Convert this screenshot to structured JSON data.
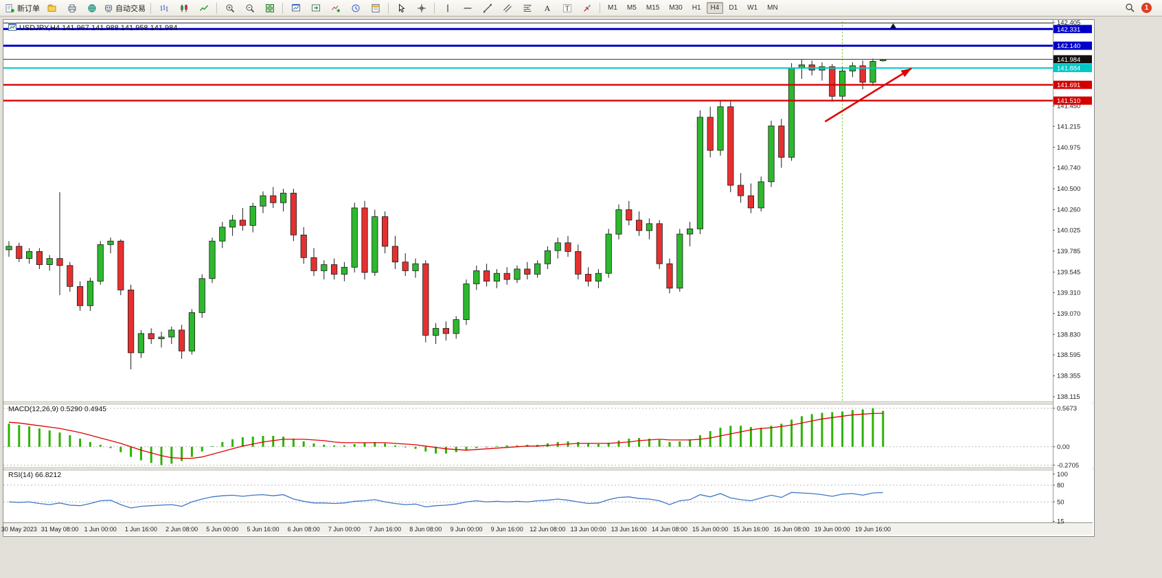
{
  "toolbar": {
    "new_order": "新订单",
    "auto_trading": "自动交易",
    "buttons": [
      {
        "name": "new-order-button",
        "icon": "new-order",
        "label": "新订单"
      },
      {
        "name": "profiles-button",
        "icon": "folder"
      },
      {
        "name": "print-button",
        "icon": "printer"
      },
      {
        "name": "navigator-button",
        "icon": "globe"
      },
      {
        "name": "auto-trading-button",
        "icon": "robot",
        "label": "自动交易"
      },
      {
        "sep": true
      },
      {
        "name": "bar-chart-button",
        "icon": "bars"
      },
      {
        "name": "candlestick-chart-button",
        "icon": "candles"
      },
      {
        "name": "line-chart-button",
        "icon": "line"
      },
      {
        "sep": true
      },
      {
        "name": "zoom-in-button",
        "icon": "zoom-in"
      },
      {
        "name": "zoom-out-button",
        "icon": "zoom-out"
      },
      {
        "name": "tile-windows-button",
        "icon": "tile"
      },
      {
        "sep": true
      },
      {
        "name": "new-chart-button",
        "icon": "new-chart"
      },
      {
        "name": "chart-shift-button",
        "icon": "shift"
      },
      {
        "name": "indicators-button",
        "icon": "indicator-plus"
      },
      {
        "name": "period-button",
        "icon": "clock"
      },
      {
        "name": "templates-button",
        "icon": "template"
      },
      {
        "sep": true
      },
      {
        "name": "cursor-button",
        "icon": "cursor"
      },
      {
        "name": "crosshair-button",
        "icon": "crosshair"
      },
      {
        "sep": true
      },
      {
        "name": "vertical-line-button",
        "icon": "vline"
      },
      {
        "name": "horizontal-line-button",
        "icon": "hline"
      },
      {
        "name": "trendline-button",
        "icon": "trendline"
      },
      {
        "name": "channel-button",
        "icon": "channel"
      },
      {
        "name": "fibonacci-button",
        "icon": "fibo"
      },
      {
        "name": "text-button",
        "icon": "textA"
      },
      {
        "name": "label-button",
        "icon": "labelT"
      },
      {
        "name": "arrows-button",
        "icon": "arrows"
      },
      {
        "sep": true
      }
    ],
    "timeframes": [
      "M1",
      "M5",
      "M15",
      "M30",
      "H1",
      "H4",
      "D1",
      "W1",
      "MN"
    ],
    "active_timeframe": "H4",
    "right_icons": [
      {
        "name": "search-icon",
        "icon": "search"
      }
    ],
    "notification_count": "1"
  },
  "chart": {
    "header": "USDJPY,H4 141.967 141.988 141.958 141.984",
    "macd_label": "MACD(12,26,9) 0.5290 0.4945",
    "rsi_label": "RSI(14) 66.8212"
  },
  "chart_data": {
    "type": "candlestick",
    "symbol": "USDJPY",
    "timeframe": "H4",
    "current_price": 141.984,
    "current_price_label": "141.984",
    "price_range": {
      "min": 138.06,
      "max": 142.42
    },
    "price_axis_ticks": [
      "142.405",
      "141.450",
      "141.215",
      "140.975",
      "140.740",
      "140.500",
      "140.260",
      "140.025",
      "139.785",
      "139.545",
      "139.310",
      "139.070",
      "138.830",
      "138.595",
      "138.355",
      "138.115"
    ],
    "time_labels": [
      "30 May 2023",
      "31 May 08:00",
      "1 Jun 00:00",
      "1 Jun 16:00",
      "2 Jun 08:00",
      "5 Jun 00:00",
      "5 Jun 16:00",
      "6 Jun 08:00",
      "7 Jun 00:00",
      "7 Jun 16:00",
      "8 Jun 08:00",
      "9 Jun 00:00",
      "9 Jun 16:00",
      "12 Jun 08:00",
      "13 Jun 00:00",
      "13 Jun 16:00",
      "14 Jun 08:00",
      "15 Jun 00:00",
      "15 Jun 16:00",
      "16 Jun 08:00",
      "19 Jun 00:00",
      "19 Jun 16:00"
    ],
    "levels": [
      {
        "price": 142.331,
        "label_text": "142.331",
        "color": "#0000c8",
        "width": 3
      },
      {
        "price": 142.14,
        "label_text": "142.140",
        "color": "#0000c8",
        "width": 3
      },
      {
        "price": 141.884,
        "label_text": "141.884",
        "color": "#00c8c8",
        "width": 2
      },
      {
        "price": 141.691,
        "label_text": "141.691",
        "color": "#d40000",
        "width": 2.4
      },
      {
        "price": 141.51,
        "label_text": "141.510",
        "color": "#d40000",
        "width": 2.4
      }
    ],
    "colors": {
      "bull": "#2eb82e",
      "bear": "#e63030",
      "wick": "#1a1a1a",
      "macd_hist": "#2db200",
      "macd_signal": "#e00000",
      "rsi_line": "#3e76c6"
    },
    "candles": [
      [
        139.8,
        139.9,
        139.72,
        139.84
      ],
      [
        139.84,
        139.88,
        139.66,
        139.7
      ],
      [
        139.7,
        139.82,
        139.64,
        139.78
      ],
      [
        139.78,
        139.82,
        139.58,
        139.63
      ],
      [
        139.63,
        139.74,
        139.56,
        139.7
      ],
      [
        139.7,
        140.46,
        139.28,
        139.62
      ],
      [
        139.62,
        139.66,
        139.32,
        139.38
      ],
      [
        139.38,
        139.44,
        139.1,
        139.16
      ],
      [
        139.16,
        139.48,
        139.1,
        139.44
      ],
      [
        139.44,
        139.9,
        139.4,
        139.86
      ],
      [
        139.86,
        139.94,
        139.76,
        139.9
      ],
      [
        139.9,
        139.92,
        139.28,
        139.34
      ],
      [
        139.34,
        139.4,
        138.43,
        138.62
      ],
      [
        138.62,
        138.88,
        138.56,
        138.84
      ],
      [
        138.84,
        138.9,
        138.72,
        138.78
      ],
      [
        138.78,
        138.86,
        138.68,
        138.8
      ],
      [
        138.8,
        138.92,
        138.72,
        138.88
      ],
      [
        138.88,
        138.94,
        138.55,
        138.64
      ],
      [
        138.64,
        139.12,
        138.6,
        139.08
      ],
      [
        139.08,
        139.52,
        139.02,
        139.47
      ],
      [
        139.47,
        139.94,
        139.42,
        139.9
      ],
      [
        139.9,
        140.12,
        139.82,
        140.06
      ],
      [
        140.06,
        140.2,
        139.96,
        140.14
      ],
      [
        140.14,
        140.28,
        140.02,
        140.08
      ],
      [
        140.08,
        140.34,
        140.0,
        140.3
      ],
      [
        140.3,
        140.47,
        140.22,
        140.42
      ],
      [
        140.42,
        140.52,
        140.28,
        140.34
      ],
      [
        140.34,
        140.5,
        140.24,
        140.45
      ],
      [
        140.45,
        140.5,
        139.9,
        139.97
      ],
      [
        139.97,
        140.06,
        139.64,
        139.71
      ],
      [
        139.71,
        139.82,
        139.5,
        139.56
      ],
      [
        139.56,
        139.68,
        139.46,
        139.63
      ],
      [
        139.63,
        139.7,
        139.46,
        139.52
      ],
      [
        139.52,
        139.66,
        139.44,
        139.6
      ],
      [
        139.6,
        140.34,
        139.54,
        140.28
      ],
      [
        140.28,
        140.36,
        139.46,
        139.54
      ],
      [
        139.54,
        140.26,
        139.5,
        140.18
      ],
      [
        140.18,
        140.24,
        139.76,
        139.84
      ],
      [
        139.84,
        139.96,
        139.58,
        139.66
      ],
      [
        139.66,
        139.76,
        139.5,
        139.56
      ],
      [
        139.56,
        139.7,
        139.48,
        139.64
      ],
      [
        139.64,
        139.68,
        138.74,
        138.82
      ],
      [
        138.82,
        138.96,
        138.72,
        138.9
      ],
      [
        138.9,
        138.98,
        138.76,
        138.84
      ],
      [
        138.84,
        139.04,
        138.78,
        139.0
      ],
      [
        139.0,
        139.46,
        138.94,
        139.41
      ],
      [
        139.41,
        139.62,
        139.34,
        139.56
      ],
      [
        139.56,
        139.64,
        139.38,
        139.44
      ],
      [
        139.44,
        139.58,
        139.36,
        139.53
      ],
      [
        139.53,
        139.6,
        139.4,
        139.46
      ],
      [
        139.46,
        139.62,
        139.42,
        139.58
      ],
      [
        139.58,
        139.66,
        139.46,
        139.52
      ],
      [
        139.52,
        139.68,
        139.48,
        139.64
      ],
      [
        139.64,
        139.84,
        139.58,
        139.79
      ],
      [
        139.79,
        139.94,
        139.7,
        139.88
      ],
      [
        139.88,
        139.96,
        139.72,
        139.78
      ],
      [
        139.78,
        139.86,
        139.46,
        139.52
      ],
      [
        139.52,
        139.6,
        139.38,
        139.44
      ],
      [
        139.44,
        139.58,
        139.36,
        139.53
      ],
      [
        139.53,
        140.04,
        139.48,
        139.98
      ],
      [
        139.98,
        140.32,
        139.92,
        140.26
      ],
      [
        140.26,
        140.36,
        140.08,
        140.14
      ],
      [
        140.14,
        140.24,
        139.96,
        140.02
      ],
      [
        140.02,
        140.16,
        139.92,
        140.1
      ],
      [
        140.1,
        140.14,
        139.58,
        139.64
      ],
      [
        139.64,
        139.7,
        139.3,
        139.36
      ],
      [
        139.36,
        140.04,
        139.32,
        139.98
      ],
      [
        139.98,
        140.12,
        139.84,
        140.04
      ],
      [
        140.04,
        141.4,
        139.98,
        141.32
      ],
      [
        141.32,
        141.44,
        140.86,
        140.94
      ],
      [
        140.94,
        141.52,
        140.88,
        141.44
      ],
      [
        141.44,
        141.5,
        140.46,
        140.54
      ],
      [
        140.54,
        140.68,
        140.34,
        140.42
      ],
      [
        140.42,
        140.56,
        140.22,
        140.28
      ],
      [
        140.28,
        140.64,
        140.24,
        140.58
      ],
      [
        140.58,
        141.28,
        140.52,
        141.22
      ],
      [
        141.22,
        141.3,
        140.74,
        140.86
      ],
      [
        140.86,
        141.94,
        140.82,
        141.88
      ],
      [
        141.88,
        141.98,
        141.76,
        141.92
      ],
      [
        141.92,
        141.97,
        141.8,
        141.86
      ],
      [
        141.86,
        141.95,
        141.74,
        141.9
      ],
      [
        141.9,
        141.93,
        141.5,
        141.56
      ],
      [
        141.56,
        141.9,
        141.52,
        141.85
      ],
      [
        141.85,
        141.95,
        141.78,
        141.91
      ],
      [
        141.91,
        141.97,
        141.64,
        141.72
      ],
      [
        141.72,
        141.99,
        141.68,
        141.96
      ],
      [
        141.967,
        141.988,
        141.958,
        141.984
      ]
    ],
    "indicators": {
      "macd": {
        "params": "12,26,9",
        "value": "0.5290",
        "signal_value": "0.4945",
        "axis_ticks": [
          "0.5673",
          "0.00",
          "-0.2705"
        ],
        "range": {
          "min": -0.305,
          "max": 0.625
        },
        "histogram": [
          0.34,
          0.32,
          0.3,
          0.27,
          0.24,
          0.21,
          0.17,
          0.12,
          0.07,
          0.03,
          -0.02,
          -0.08,
          -0.15,
          -0.2,
          -0.24,
          -0.27,
          -0.25,
          -0.21,
          -0.15,
          -0.07,
          0.01,
          0.07,
          0.11,
          0.14,
          0.15,
          0.16,
          0.16,
          0.15,
          0.12,
          0.08,
          0.05,
          0.03,
          0.02,
          0.02,
          0.04,
          0.06,
          0.07,
          0.05,
          0.02,
          -0.01,
          -0.03,
          -0.07,
          -0.1,
          -0.1,
          -0.08,
          -0.05,
          -0.02,
          0.0,
          0.01,
          0.02,
          0.02,
          0.03,
          0.03,
          0.05,
          0.07,
          0.08,
          0.07,
          0.05,
          0.04,
          0.06,
          0.09,
          0.12,
          0.13,
          0.12,
          0.1,
          0.07,
          0.08,
          0.11,
          0.17,
          0.23,
          0.28,
          0.31,
          0.31,
          0.29,
          0.28,
          0.31,
          0.34,
          0.4,
          0.45,
          0.48,
          0.5,
          0.51,
          0.52,
          0.54,
          0.55,
          0.567,
          0.529
        ],
        "signal": [
          0.36,
          0.35,
          0.33,
          0.31,
          0.29,
          0.27,
          0.24,
          0.21,
          0.17,
          0.13,
          0.09,
          0.05,
          0.0,
          -0.05,
          -0.09,
          -0.13,
          -0.16,
          -0.17,
          -0.17,
          -0.15,
          -0.11,
          -0.07,
          -0.03,
          0.01,
          0.04,
          0.07,
          0.09,
          0.11,
          0.11,
          0.11,
          0.1,
          0.09,
          0.07,
          0.06,
          0.06,
          0.06,
          0.06,
          0.06,
          0.05,
          0.04,
          0.03,
          0.01,
          -0.01,
          -0.03,
          -0.04,
          -0.05,
          -0.04,
          -0.03,
          -0.02,
          -0.01,
          0.0,
          0.01,
          0.01,
          0.02,
          0.03,
          0.04,
          0.05,
          0.05,
          0.05,
          0.05,
          0.06,
          0.07,
          0.09,
          0.1,
          0.11,
          0.1,
          0.1,
          0.1,
          0.11,
          0.13,
          0.16,
          0.19,
          0.22,
          0.25,
          0.27,
          0.28,
          0.3,
          0.32,
          0.35,
          0.38,
          0.41,
          0.43,
          0.45,
          0.47,
          0.48,
          0.49,
          0.494
        ]
      },
      "rsi": {
        "params": "14",
        "value": "66.8212",
        "axis_ticks": [
          "100",
          "80",
          "50",
          "15"
        ],
        "levels": [
          80,
          50
        ],
        "range": {
          "min": 13,
          "max": 107
        },
        "values": [
          50,
          49,
          50,
          47,
          45,
          48,
          44,
          43,
          47,
          52,
          53,
          45,
          39,
          42,
          43,
          44,
          45,
          42,
          50,
          55,
          59,
          61,
          62,
          60,
          62,
          63,
          61,
          63,
          55,
          51,
          48,
          48,
          47,
          48,
          51,
          52,
          54,
          50,
          47,
          45,
          46,
          41,
          43,
          44,
          46,
          50,
          52,
          50,
          51,
          50,
          51,
          50,
          52,
          53,
          55,
          53,
          50,
          47,
          48,
          54,
          58,
          59,
          56,
          55,
          52,
          45,
          52,
          54,
          63,
          59,
          65,
          57,
          54,
          52,
          57,
          62,
          58,
          67,
          66,
          65,
          63,
          60,
          64,
          65,
          62,
          66,
          66.8
        ]
      }
    },
    "annotations": {
      "trend_arrow": {
        "from_index": 80.3,
        "from_price": 141.27,
        "to_index": 88.8,
        "to_price": 141.88,
        "color": "#e00000"
      },
      "top_line": {
        "price": 142.4,
        "color": "#222222"
      },
      "top_marker": {
        "index": 87,
        "color": "#111111"
      },
      "vline": {
        "index": 82,
        "color": "#8cc63f"
      }
    }
  }
}
